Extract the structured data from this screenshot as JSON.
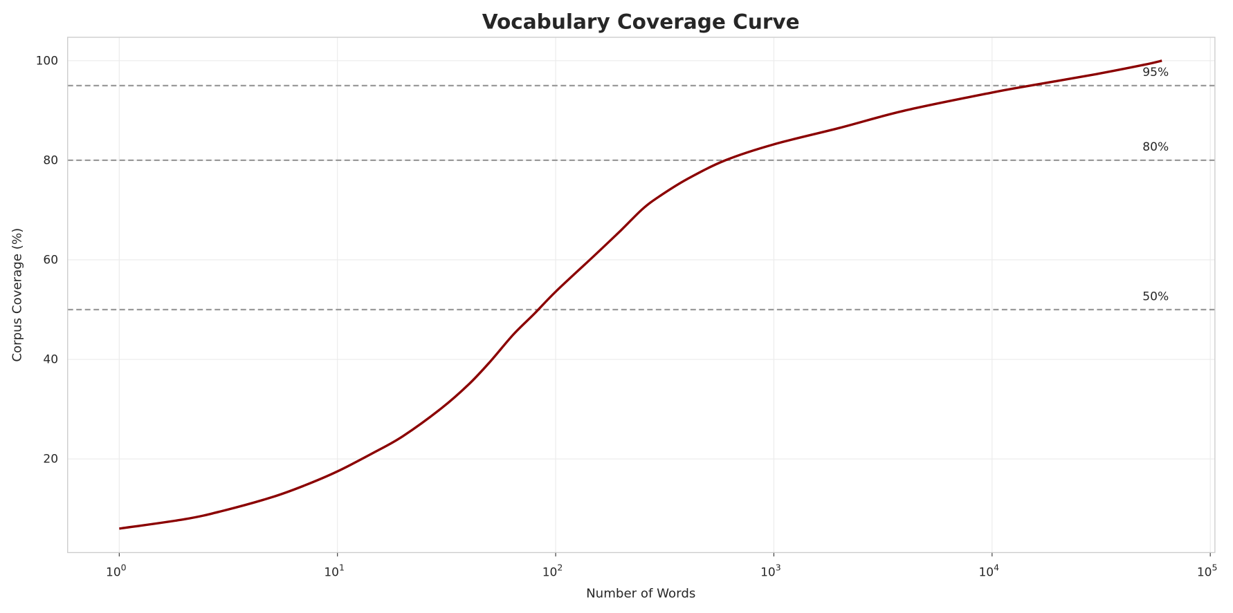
{
  "chart_data": {
    "type": "line",
    "title": "Vocabulary Coverage Curve",
    "xlabel": "Number of Words",
    "ylabel": "Corpus Coverage (%)",
    "x_scale": "log",
    "xlim": [
      0.58,
      105000
    ],
    "ylim": [
      1.2,
      104.7
    ],
    "grid": true,
    "x_ticks": [
      1,
      10,
      100,
      1000,
      10000,
      100000
    ],
    "x_tick_labels": [
      {
        "base": "10",
        "exp": "0"
      },
      {
        "base": "10",
        "exp": "1"
      },
      {
        "base": "10",
        "exp": "2"
      },
      {
        "base": "10",
        "exp": "3"
      },
      {
        "base": "10",
        "exp": "4"
      },
      {
        "base": "10",
        "exp": "5"
      }
    ],
    "y_ticks": [
      20,
      40,
      60,
      80,
      100
    ],
    "y_tick_labels": [
      "20",
      "40",
      "60",
      "80",
      "100"
    ],
    "series": [
      {
        "color": "#8b0000",
        "x": [
          1,
          2,
          3,
          5,
          7,
          10,
          15,
          20,
          30,
          40,
          50,
          64,
          80,
          100,
          150,
          200,
          250,
          300,
          400,
          600,
          1000,
          2000,
          4000,
          10000,
          15000,
          30000,
          50000,
          60000
        ],
        "y": [
          6.0,
          7.9,
          9.6,
          12.3,
          14.6,
          17.5,
          21.5,
          24.6,
          30.2,
          35.0,
          39.5,
          45.0,
          49.2,
          53.6,
          60.8,
          66.0,
          70.2,
          72.8,
          76.2,
          80.0,
          83.2,
          86.5,
          90.0,
          93.6,
          95.0,
          97.3,
          99.2,
          100.0
        ]
      }
    ],
    "reference_lines": [
      {
        "y": 95,
        "label": "95%",
        "color": "#999999"
      },
      {
        "y": 80,
        "label": "80%",
        "color": "#999999"
      },
      {
        "y": 50,
        "label": "50%",
        "color": "#999999"
      }
    ]
  }
}
